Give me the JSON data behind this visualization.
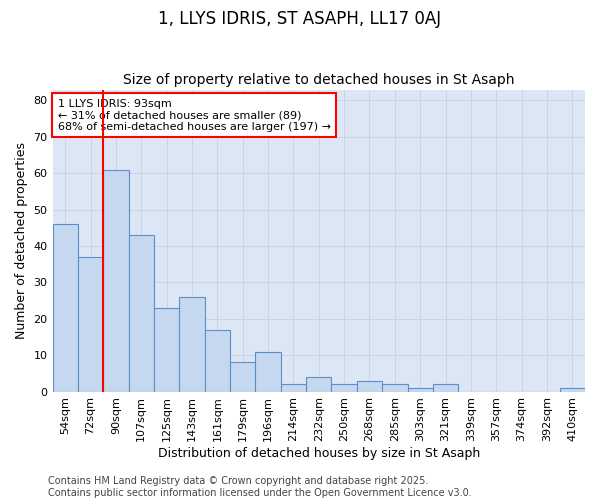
{
  "title": "1, LLYS IDRIS, ST ASAPH, LL17 0AJ",
  "subtitle": "Size of property relative to detached houses in St Asaph",
  "xlabel": "Distribution of detached houses by size in St Asaph",
  "ylabel": "Number of detached properties",
  "categories": [
    "54sqm",
    "72sqm",
    "90sqm",
    "107sqm",
    "125sqm",
    "143sqm",
    "161sqm",
    "179sqm",
    "196sqm",
    "214sqm",
    "232sqm",
    "250sqm",
    "268sqm",
    "285sqm",
    "303sqm",
    "321sqm",
    "339sqm",
    "357sqm",
    "374sqm",
    "392sqm",
    "410sqm"
  ],
  "values": [
    46,
    37,
    61,
    43,
    23,
    26,
    17,
    8,
    11,
    2,
    4,
    2,
    3,
    2,
    1,
    2,
    0,
    0,
    0,
    0,
    1
  ],
  "bar_color": "#c5d8ef",
  "bar_edge_color": "#5b8fc9",
  "grid_color": "#c8d4e8",
  "background_color": "#dde6f5",
  "annotation_text_line1": "1 LLYS IDRIS: 93sqm",
  "annotation_text_line2": "← 31% of detached houses are smaller (89)",
  "annotation_text_line3": "68% of semi-detached houses are larger (197) →",
  "annotation_box_color": "white",
  "annotation_box_edge_color": "red",
  "vline_color": "red",
  "ylim": [
    0,
    83
  ],
  "yticks": [
    0,
    10,
    20,
    30,
    40,
    50,
    60,
    70,
    80
  ],
  "footer_text": "Contains HM Land Registry data © Crown copyright and database right 2025.\nContains public sector information licensed under the Open Government Licence v3.0.",
  "title_fontsize": 12,
  "subtitle_fontsize": 10,
  "tick_fontsize": 8,
  "label_fontsize": 9,
  "annotation_fontsize": 8,
  "footer_fontsize": 7
}
